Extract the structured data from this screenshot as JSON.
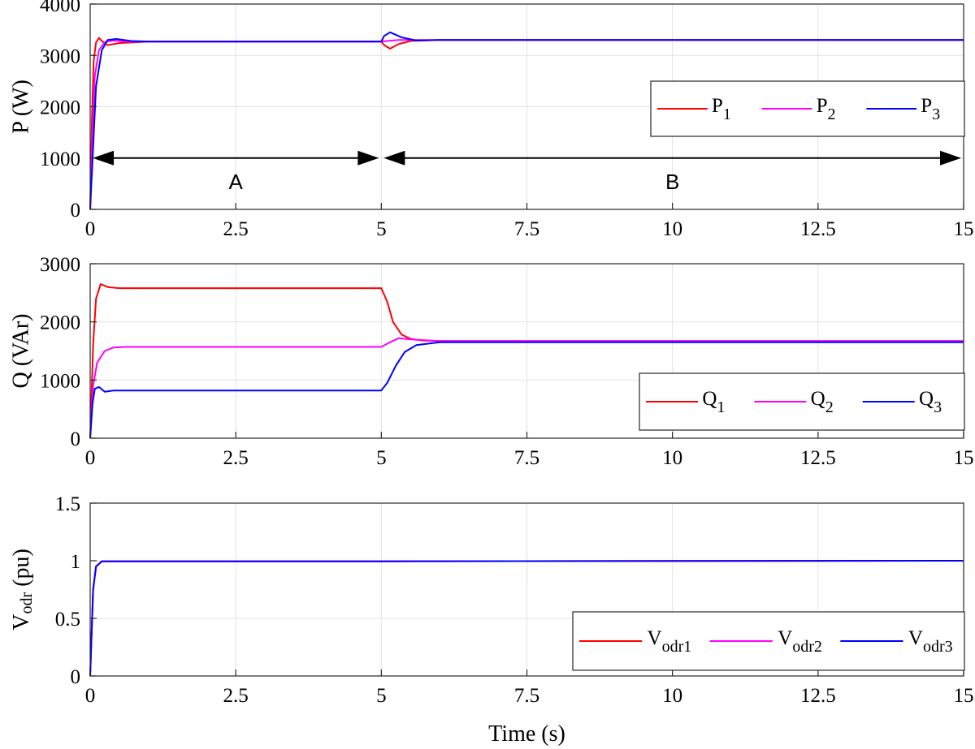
{
  "chart_data": [
    {
      "type": "line",
      "ylabel": "P (W)",
      "xlim": [
        0,
        15
      ],
      "ylim": [
        0,
        4000
      ],
      "xticks": [
        0,
        2.5,
        5,
        7.5,
        10,
        12.5,
        15
      ],
      "xtick_labels": [
        "0",
        "2.5",
        "5",
        "7.5",
        "10",
        "12.5",
        "15"
      ],
      "yticks": [
        0,
        1000,
        2000,
        3000,
        4000
      ],
      "ytick_labels": [
        "0",
        "1000",
        "2000",
        "3000",
        "4000"
      ],
      "grid": true,
      "legend_position": "right",
      "annotations": [
        {
          "label": "A",
          "x_start": 0,
          "x_end": 5,
          "y": 1000
        },
        {
          "label": "B",
          "x_start": 5,
          "x_end": 15,
          "y": 1000
        }
      ],
      "series": [
        {
          "name": "P",
          "sub": "1",
          "color": "#ff0000",
          "points": [
            [
              0,
              0
            ],
            [
              0.03,
              1800
            ],
            [
              0.06,
              2900
            ],
            [
              0.1,
              3250
            ],
            [
              0.15,
              3340
            ],
            [
              0.2,
              3280
            ],
            [
              0.3,
              3200
            ],
            [
              0.5,
              3240
            ],
            [
              1,
              3270
            ],
            [
              5,
              3270
            ],
            [
              5.05,
              3200
            ],
            [
              5.15,
              3130
            ],
            [
              5.3,
              3220
            ],
            [
              5.5,
              3280
            ],
            [
              6,
              3300
            ],
            [
              15,
              3300
            ]
          ]
        },
        {
          "name": "P",
          "sub": "2",
          "color": "#ff00ff",
          "points": [
            [
              0,
              0
            ],
            [
              0.04,
              1500
            ],
            [
              0.08,
              2600
            ],
            [
              0.15,
              3100
            ],
            [
              0.25,
              3260
            ],
            [
              0.4,
              3290
            ],
            [
              0.6,
              3270
            ],
            [
              1,
              3270
            ],
            [
              5,
              3270
            ],
            [
              5.1,
              3280
            ],
            [
              5.3,
              3300
            ],
            [
              6,
              3300
            ],
            [
              15,
              3300
            ]
          ]
        },
        {
          "name": "P",
          "sub": "3",
          "color": "#0000ff",
          "points": [
            [
              0,
              0
            ],
            [
              0.05,
              1200
            ],
            [
              0.1,
              2400
            ],
            [
              0.2,
              3100
            ],
            [
              0.3,
              3300
            ],
            [
              0.45,
              3320
            ],
            [
              0.7,
              3280
            ],
            [
              1,
              3270
            ],
            [
              5,
              3270
            ],
            [
              5.05,
              3380
            ],
            [
              5.15,
              3450
            ],
            [
              5.35,
              3350
            ],
            [
              5.6,
              3290
            ],
            [
              6,
              3300
            ],
            [
              15,
              3300
            ]
          ]
        }
      ]
    },
    {
      "type": "line",
      "ylabel": "Q (VAr)",
      "xlim": [
        0,
        15
      ],
      "ylim": [
        0,
        3000
      ],
      "xticks": [
        0,
        2.5,
        5,
        7.5,
        10,
        12.5,
        15
      ],
      "xtick_labels": [
        "0",
        "2.5",
        "5",
        "7.5",
        "10",
        "12.5",
        "15"
      ],
      "yticks": [
        0,
        1000,
        2000,
        3000
      ],
      "ytick_labels": [
        "0",
        "1000",
        "2000",
        "3000"
      ],
      "grid": true,
      "legend_position": "bottom-right",
      "series": [
        {
          "name": "Q",
          "sub": "1",
          "color": "#ff0000",
          "points": [
            [
              0,
              0
            ],
            [
              0.05,
              1600
            ],
            [
              0.1,
              2400
            ],
            [
              0.18,
              2650
            ],
            [
              0.3,
              2600
            ],
            [
              0.5,
              2580
            ],
            [
              5,
              2580
            ],
            [
              5.1,
              2350
            ],
            [
              5.2,
              2000
            ],
            [
              5.35,
              1780
            ],
            [
              5.5,
              1710
            ],
            [
              5.7,
              1680
            ],
            [
              6,
              1670
            ],
            [
              15,
              1670
            ]
          ]
        },
        {
          "name": "Q",
          "sub": "2",
          "color": "#ff00ff",
          "points": [
            [
              0,
              0
            ],
            [
              0.05,
              900
            ],
            [
              0.12,
              1300
            ],
            [
              0.25,
              1500
            ],
            [
              0.4,
              1560
            ],
            [
              0.6,
              1570
            ],
            [
              5,
              1570
            ],
            [
              5.15,
              1650
            ],
            [
              5.3,
              1720
            ],
            [
              5.5,
              1700
            ],
            [
              6,
              1670
            ],
            [
              15,
              1670
            ]
          ]
        },
        {
          "name": "Q",
          "sub": "3",
          "color": "#0000ff",
          "points": [
            [
              0,
              0
            ],
            [
              0.04,
              600
            ],
            [
              0.08,
              850
            ],
            [
              0.15,
              880
            ],
            [
              0.25,
              800
            ],
            [
              0.4,
              820
            ],
            [
              5,
              820
            ],
            [
              5.1,
              950
            ],
            [
              5.25,
              1250
            ],
            [
              5.4,
              1480
            ],
            [
              5.6,
              1600
            ],
            [
              6,
              1650
            ],
            [
              15,
              1650
            ]
          ]
        }
      ]
    },
    {
      "type": "line",
      "xlabel": "Time (s)",
      "ylabel_main": "V",
      "ylabel_sub": "odr",
      "ylabel_unit": " (pu)",
      "xlim": [
        0,
        15
      ],
      "ylim": [
        0,
        1.5
      ],
      "xticks": [
        0,
        2.5,
        5,
        7.5,
        10,
        12.5,
        15
      ],
      "xtick_labels": [
        "0",
        "2.5",
        "5",
        "7.5",
        "10",
        "12.5",
        "15"
      ],
      "yticks": [
        0,
        0.5,
        1,
        1.5
      ],
      "ytick_labels": [
        "0",
        "0.5",
        "1",
        "1.5"
      ],
      "grid": true,
      "legend_position": "bottom-right",
      "series": [
        {
          "name": "V",
          "sub": "odr1",
          "color": "#ff0000",
          "points": [
            [
              0,
              0
            ],
            [
              0.05,
              0.75
            ],
            [
              0.1,
              0.95
            ],
            [
              0.2,
              0.995
            ],
            [
              5,
              0.995
            ],
            [
              15,
              1.0
            ]
          ]
        },
        {
          "name": "V",
          "sub": "odr2",
          "color": "#ff00ff",
          "points": [
            [
              0,
              0
            ],
            [
              0.05,
              0.75
            ],
            [
              0.1,
              0.95
            ],
            [
              0.2,
              0.995
            ],
            [
              5,
              0.995
            ],
            [
              15,
              1.0
            ]
          ]
        },
        {
          "name": "V",
          "sub": "odr3",
          "color": "#0000ff",
          "points": [
            [
              0,
              0
            ],
            [
              0.05,
              0.75
            ],
            [
              0.1,
              0.95
            ],
            [
              0.2,
              0.995
            ],
            [
              5,
              0.995
            ],
            [
              15,
              1.0
            ]
          ]
        }
      ]
    }
  ]
}
